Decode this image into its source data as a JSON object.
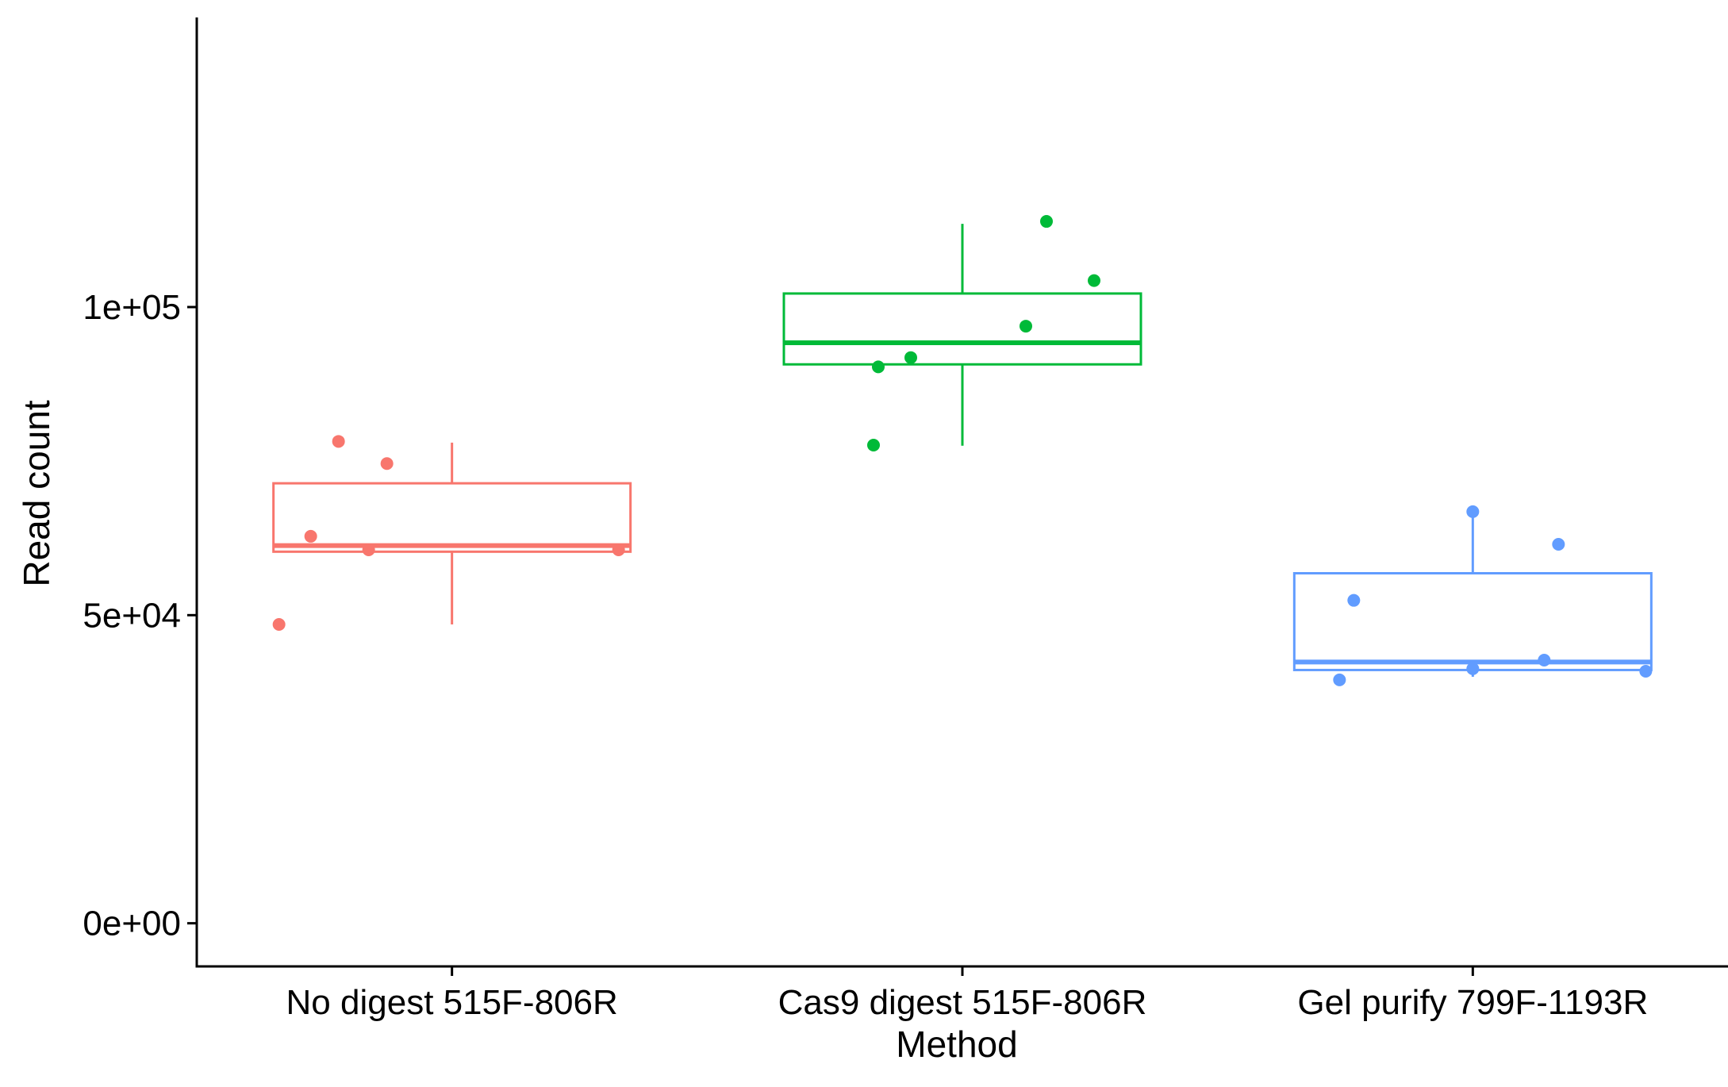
{
  "chart_data": {
    "type": "box",
    "title": "",
    "xlabel": "Method",
    "ylabel": "Read count",
    "categories": [
      "No digest 515F-806R",
      "Cas9 digest 515F-806R",
      "Gel purify 799F-1193R"
    ],
    "yticks": [
      0,
      50000,
      100000
    ],
    "ytick_labels": [
      "0e+00",
      "5e+04",
      "1e+05"
    ],
    "ylim": [
      -7000,
      147000
    ],
    "grid": false,
    "legend": "none",
    "colors": [
      "#F8766D",
      "#00BA38",
      "#619CFF"
    ],
    "boxes": [
      {
        "category": "No digest 515F-806R",
        "min": 48500,
        "q1": 60300,
        "median": 61300,
        "q3": 71400,
        "max": 78000,
        "points": [
          {
            "x": "No digest 515F-806R",
            "y": 48500
          },
          {
            "x": "No digest 515F-806R",
            "y": 62800
          },
          {
            "x": "No digest 515F-806R",
            "y": 78200
          },
          {
            "x": "No digest 515F-806R",
            "y": 60600
          },
          {
            "x": "No digest 515F-806R",
            "y": 74600
          },
          {
            "x": "No digest 515F-806R",
            "y": 60600
          }
        ]
      },
      {
        "category": "Cas9 digest 515F-806R",
        "min": 77500,
        "q1": 90700,
        "median": 94200,
        "q3": 102200,
        "max": 113500,
        "points": [
          {
            "x": "Cas9 digest 515F-806R",
            "y": 77600
          },
          {
            "x": "Cas9 digest 515F-806R",
            "y": 90300
          },
          {
            "x": "Cas9 digest 515F-806R",
            "y": 91800
          },
          {
            "x": "Cas9 digest 515F-806R",
            "y": 96900
          },
          {
            "x": "Cas9 digest 515F-806R",
            "y": 113900
          },
          {
            "x": "Cas9 digest 515F-806R",
            "y": 104300
          }
        ]
      },
      {
        "category": "Gel purify 799F-1193R",
        "min": 40000,
        "q1": 41100,
        "median": 42400,
        "q3": 56800,
        "max": 66800,
        "points": [
          {
            "x": "Gel purify 799F-1193R",
            "y": 39500
          },
          {
            "x": "Gel purify 799F-1193R",
            "y": 52400
          },
          {
            "x": "Gel purify 799F-1193R",
            "y": 41300
          },
          {
            "x": "Gel purify 799F-1193R",
            "y": 66800
          },
          {
            "x": "Gel purify 799F-1193R",
            "y": 61500
          },
          {
            "x": "Gel purify 799F-1193R",
            "y": 42700
          },
          {
            "x": "Gel purify 799F-1193R",
            "y": 40900
          }
        ]
      }
    ]
  }
}
